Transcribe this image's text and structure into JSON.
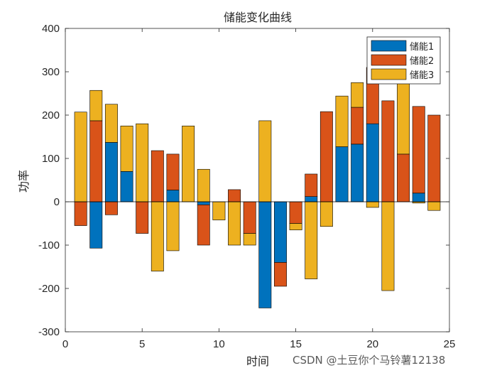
{
  "chart_data": {
    "type": "bar",
    "stacked": true,
    "title": "储能变化曲线",
    "xlabel": "时间",
    "ylabel": "功率",
    "xlim": [
      0,
      25
    ],
    "ylim": [
      -300,
      400
    ],
    "xticks": [
      0,
      5,
      10,
      15,
      20,
      25
    ],
    "yticks": [
      -300,
      -200,
      -100,
      0,
      100,
      200,
      300,
      400
    ],
    "legend_position": "top-right",
    "x": [
      1,
      2,
      3,
      4,
      5,
      6,
      7,
      8,
      9,
      10,
      11,
      12,
      13,
      14,
      15,
      16,
      17,
      18,
      19,
      20,
      21,
      22,
      23,
      24
    ],
    "series": [
      {
        "name": "储能1",
        "color": "#0072BD",
        "values": [
          0,
          -107,
          137,
          70,
          0,
          0,
          27,
          0,
          -7,
          0,
          0,
          0,
          -245,
          -140,
          0,
          12,
          0,
          127,
          133,
          180,
          0,
          0,
          20,
          0
        ]
      },
      {
        "name": "储能2",
        "color": "#D95319",
        "values": [
          -55,
          187,
          -30,
          0,
          -73,
          118,
          83,
          0,
          -93,
          0,
          28,
          -73,
          0,
          -55,
          -50,
          52,
          208,
          0,
          85,
          130,
          233,
          110,
          200,
          200
        ]
      },
      {
        "name": "储能3",
        "color": "#EDB120",
        "values": [
          207,
          70,
          88,
          105,
          180,
          -160,
          -113,
          175,
          75,
          -42,
          -100,
          -27,
          187,
          0,
          -15,
          -178,
          -57,
          117,
          57,
          -13,
          -205,
          178,
          -3,
          -20
        ]
      }
    ]
  },
  "watermark": "CSDN @土豆你个马铃薯12138"
}
